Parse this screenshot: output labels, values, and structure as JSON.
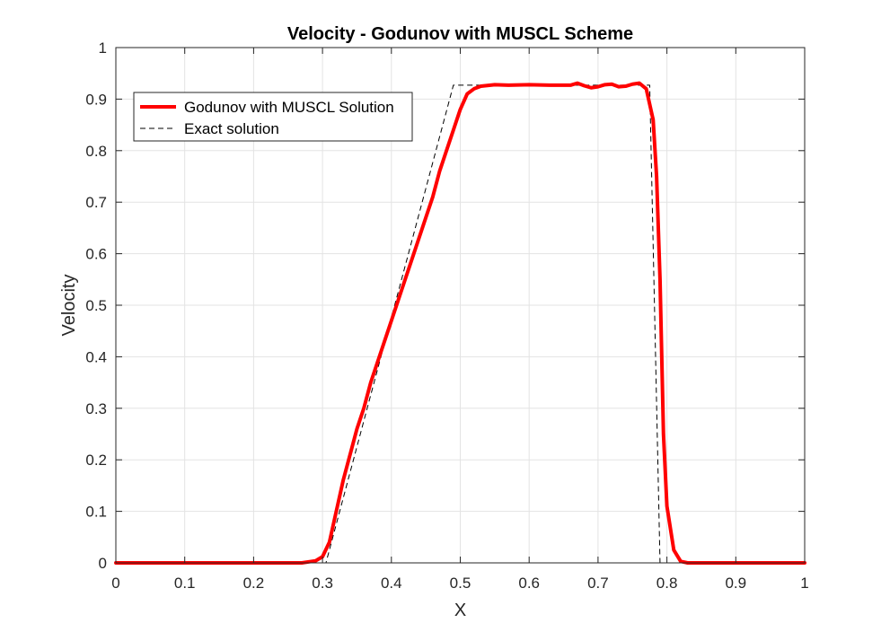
{
  "chart_data": {
    "type": "line",
    "title": "Velocity - Godunov with MUSCL Scheme",
    "xlabel": "X",
    "ylabel": "Velocity",
    "xlim": [
      0,
      1
    ],
    "ylim": [
      0,
      1
    ],
    "grid": true,
    "legend_position": "top-left",
    "x_ticks": [
      "0",
      "0.1",
      "0.2",
      "0.3",
      "0.4",
      "0.5",
      "0.6",
      "0.7",
      "0.8",
      "0.9",
      "1"
    ],
    "y_ticks": [
      "0",
      "0.1",
      "0.2",
      "0.3",
      "0.4",
      "0.5",
      "0.6",
      "0.7",
      "0.8",
      "0.9",
      "1"
    ],
    "series": [
      {
        "name": "Godunov with MUSCL Solution",
        "color": "#ff0000",
        "style": "solid",
        "x": [
          0,
          0.27,
          0.29,
          0.3,
          0.31,
          0.32,
          0.33,
          0.34,
          0.35,
          0.36,
          0.37,
          0.38,
          0.39,
          0.4,
          0.41,
          0.42,
          0.43,
          0.44,
          0.45,
          0.46,
          0.47,
          0.48,
          0.49,
          0.5,
          0.51,
          0.52,
          0.53,
          0.55,
          0.57,
          0.6,
          0.63,
          0.66,
          0.67,
          0.68,
          0.69,
          0.7,
          0.71,
          0.72,
          0.73,
          0.74,
          0.75,
          0.76,
          0.77,
          0.78,
          0.785,
          0.79,
          0.795,
          0.8,
          0.81,
          0.82,
          0.83,
          1.0
        ],
        "y": [
          0,
          0,
          0.004,
          0.012,
          0.04,
          0.1,
          0.16,
          0.21,
          0.26,
          0.3,
          0.35,
          0.39,
          0.43,
          0.47,
          0.51,
          0.55,
          0.59,
          0.63,
          0.67,
          0.71,
          0.76,
          0.8,
          0.84,
          0.88,
          0.91,
          0.92,
          0.925,
          0.928,
          0.927,
          0.928,
          0.927,
          0.927,
          0.931,
          0.926,
          0.922,
          0.924,
          0.928,
          0.929,
          0.924,
          0.925,
          0.929,
          0.931,
          0.92,
          0.86,
          0.75,
          0.55,
          0.25,
          0.11,
          0.025,
          0.003,
          0,
          0
        ]
      },
      {
        "name": "Exact solution",
        "color": "#000000",
        "style": "dashed",
        "x": [
          0,
          0.305,
          0.49,
          0.775,
          0.79,
          1.0
        ],
        "y": [
          0,
          0,
          0.927,
          0.927,
          0,
          0
        ]
      }
    ]
  }
}
